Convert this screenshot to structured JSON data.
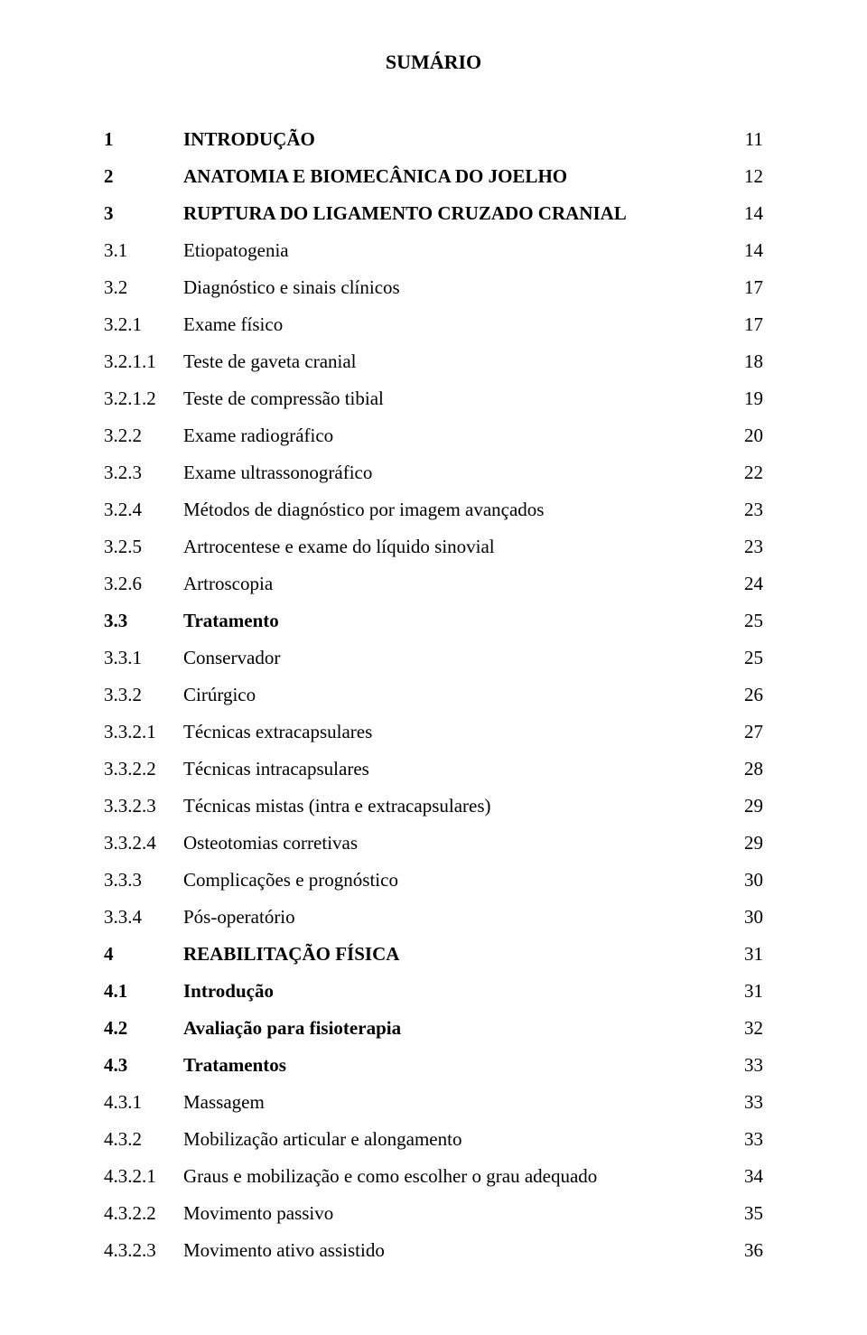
{
  "page": {
    "title": "SUMÁRIO",
    "font_family": "Times New Roman",
    "text_color": "#000000",
    "background_color": "#ffffff",
    "base_fontsize_pt": 16
  },
  "toc": [
    {
      "num": "1",
      "label": "INTRODUÇÃO",
      "page": "11",
      "bold": true
    },
    {
      "num": "2",
      "label": "ANATOMIA E BIOMECÂNICA DO JOELHO",
      "page": "12",
      "bold": true
    },
    {
      "num": "3",
      "label": "RUPTURA DO LIGAMENTO CRUZADO CRANIAL",
      "page": "14",
      "bold": true
    },
    {
      "num": "3.1",
      "label": "Etiopatogenia",
      "page": "14",
      "bold": false
    },
    {
      "num": "3.2",
      "label": "Diagnóstico e sinais clínicos",
      "page": "17",
      "bold": false
    },
    {
      "num": "3.2.1",
      "label": "Exame físico",
      "page": "17",
      "bold": false
    },
    {
      "num": "3.2.1.1",
      "label": "Teste de gaveta cranial",
      "page": "18",
      "bold": false
    },
    {
      "num": "3.2.1.2",
      "label": "Teste de compressão tibial",
      "page": "19",
      "bold": false
    },
    {
      "num": "3.2.2",
      "label": "Exame radiográfico",
      "page": "20",
      "bold": false
    },
    {
      "num": "3.2.3",
      "label": "Exame ultrassonográfico",
      "page": "22",
      "bold": false
    },
    {
      "num": "3.2.4",
      "label": "Métodos de diagnóstico por imagem avançados",
      "page": "23",
      "bold": false
    },
    {
      "num": "3.2.5",
      "label": "Artrocentese e exame do líquido sinovial",
      "page": "23",
      "bold": false
    },
    {
      "num": "3.2.6",
      "label": "Artroscopia",
      "page": "24",
      "bold": false
    },
    {
      "num": "3.3",
      "label": "Tratamento",
      "page": "25",
      "bold": true
    },
    {
      "num": "3.3.1",
      "label": "Conservador",
      "page": "25",
      "bold": false
    },
    {
      "num": "3.3.2",
      "label": "Cirúrgico",
      "page": "26",
      "bold": false
    },
    {
      "num": "3.3.2.1",
      "label": "Técnicas extracapsulares",
      "page": "27",
      "bold": false
    },
    {
      "num": "3.3.2.2",
      "label": "Técnicas intracapsulares",
      "page": "28",
      "bold": false
    },
    {
      "num": "3.3.2.3",
      "label": "Técnicas mistas (intra e extracapsulares)",
      "page": "29",
      "bold": false
    },
    {
      "num": "3.3.2.4",
      "label": "Osteotomias corretivas",
      "page": "29",
      "bold": false
    },
    {
      "num": "3.3.3",
      "label": "Complicações e prognóstico",
      "page": "30",
      "bold": false
    },
    {
      "num": "3.3.4",
      "label": "Pós-operatório",
      "page": "30",
      "bold": false
    },
    {
      "num": "4",
      "label": "REABILITAÇÃO FÍSICA",
      "page": "31",
      "bold": true
    },
    {
      "num": "4.1",
      "label": "Introdução",
      "page": "31",
      "bold": true
    },
    {
      "num": "4.2",
      "label": "Avaliação para fisioterapia",
      "page": "32",
      "bold": true
    },
    {
      "num": "4.3",
      "label": "Tratamentos",
      "page": "33",
      "bold": true
    },
    {
      "num": "4.3.1",
      "label": "Massagem",
      "page": "33",
      "bold": false
    },
    {
      "num": "4.3.2",
      "label": "Mobilização articular e alongamento",
      "page": "33",
      "bold": false
    },
    {
      "num": "4.3.2.1",
      "label": "Graus e mobilização e como escolher o grau adequado",
      "page": "34",
      "bold": false
    },
    {
      "num": "4.3.2.2",
      "label": "Movimento passivo",
      "page": "35",
      "bold": false
    },
    {
      "num": "4.3.2.3",
      "label": "Movimento ativo assistido",
      "page": "36",
      "bold": false
    }
  ]
}
